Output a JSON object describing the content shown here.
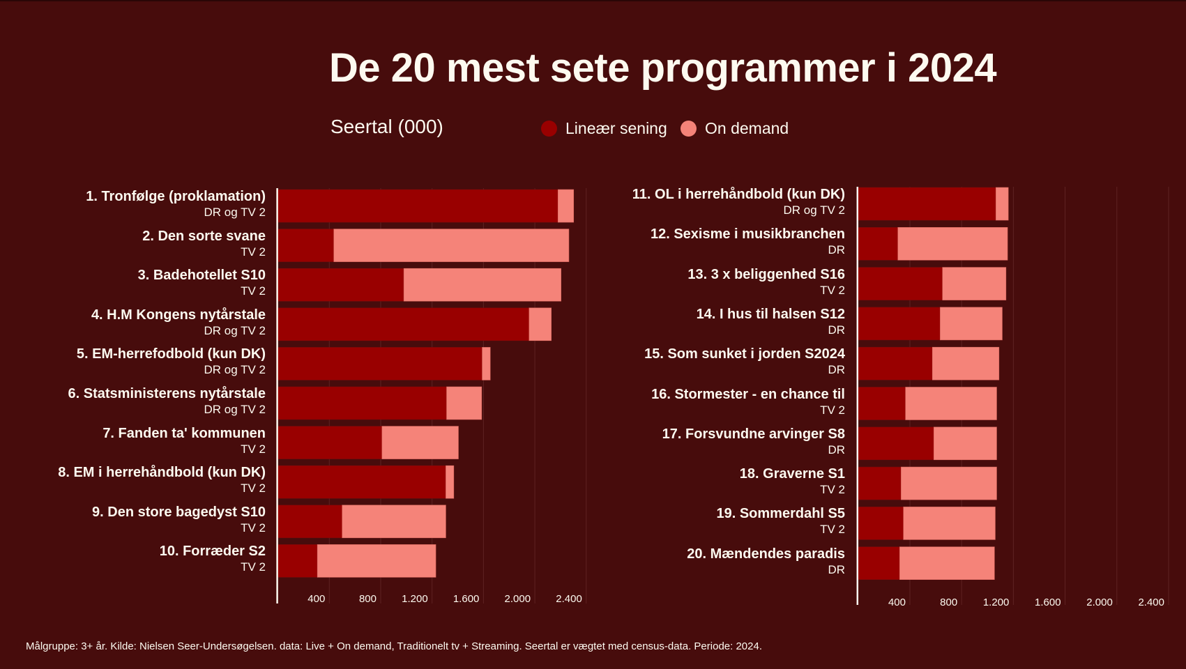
{
  "colors": {
    "background": "#470c0c",
    "linear": "#990000",
    "on_demand": "#f58379",
    "text": "#fdfaf0",
    "grid": "#5e2222"
  },
  "legend": [
    {
      "label": "Lineær sening",
      "color": "#990000"
    },
    {
      "label": "On demand",
      "color": "#f58379"
    }
  ],
  "footer": "Målgruppe: 3+ år. Kilde: Nielsen Seer-Undersøgelsen. data: Live + On demand, Traditionelt tv + Streaming. Seertal er vægtet med census-data. Periode: 2024.",
  "chart_data": {
    "type": "bar",
    "orientation": "horizontal",
    "stacked": true,
    "title": "De 20 mest sete programmer i 2024",
    "subtitle": "Seertal (000)",
    "xlim": [
      0,
      2600
    ],
    "tick_values": [
      400,
      800,
      1200,
      1600,
      2000,
      2400
    ],
    "tick_labels": [
      "400",
      "800",
      "1.200",
      "1.600",
      "2.000",
      "2.400"
    ],
    "grid": true,
    "legend_position": "top",
    "panels": [
      {
        "categories": [
          {
            "name": "1. Tronfølge (proklamation)",
            "channel": "DR og TV 2"
          },
          {
            "name": "2. Den sorte svane",
            "channel": "TV 2"
          },
          {
            "name": "3. Badehotellet S10",
            "channel": "TV 2"
          },
          {
            "name": "4. H.M Kongens nytårstale",
            "channel": "DR og TV 2"
          },
          {
            "name": "5. EM-herrefodbold (kun DK)",
            "channel": "DR og TV 2"
          },
          {
            "name": "6. Statsministerens nytårstale",
            "channel": "DR og TV 2"
          },
          {
            "name": "7. Fanden ta' kommunen",
            "channel": "TV 2"
          },
          {
            "name": "8. EM i herrehåndbold (kun DK)",
            "channel": "TV 2"
          },
          {
            "name": "9. Den store bagedyst S10",
            "channel": "TV 2"
          },
          {
            "name": "10. Forræder S2",
            "channel": "TV 2"
          }
        ],
        "series": [
          {
            "name": "Lineær sening",
            "values": [
              2180,
              435,
              980,
              1955,
              1590,
              1313,
              810,
              1307,
              500,
              307
            ]
          },
          {
            "name": "On demand",
            "values": [
              122,
              1830,
              1224,
              173,
              63,
              273,
              595,
              62,
              807,
              922
            ]
          }
        ]
      },
      {
        "categories": [
          {
            "name": "11. OL i herrehåndbold (kun DK)",
            "channel": "DR og TV 2"
          },
          {
            "name": "12. Sexisme i musikbranchen",
            "channel": "DR"
          },
          {
            "name": "13. 3 x beliggenhed S16",
            "channel": "TV 2"
          },
          {
            "name": "14. I hus til halsen S12",
            "channel": "DR"
          },
          {
            "name": "15. Som sunket i jorden S2024",
            "channel": "DR"
          },
          {
            "name": "16. Stormester - en chance til",
            "channel": "TV 2"
          },
          {
            "name": "17. Forsvundne arvinger S8",
            "channel": "DR"
          },
          {
            "name": "18. Graverne S1",
            "channel": "TV 2"
          },
          {
            "name": "19. Sommerdahl S5",
            "channel": "TV 2"
          },
          {
            "name": "20. Mændendes paradis",
            "channel": "DR"
          }
        ],
        "series": [
          {
            "name": "Lineær sening",
            "values": [
              1065,
              307,
              652,
              634,
              574,
              366,
              585,
              332,
              350,
              321
            ]
          },
          {
            "name": "On demand",
            "values": [
              96,
              848,
              491,
              480,
              515,
              705,
              486,
              739,
              710,
              733
            ]
          }
        ]
      }
    ]
  }
}
